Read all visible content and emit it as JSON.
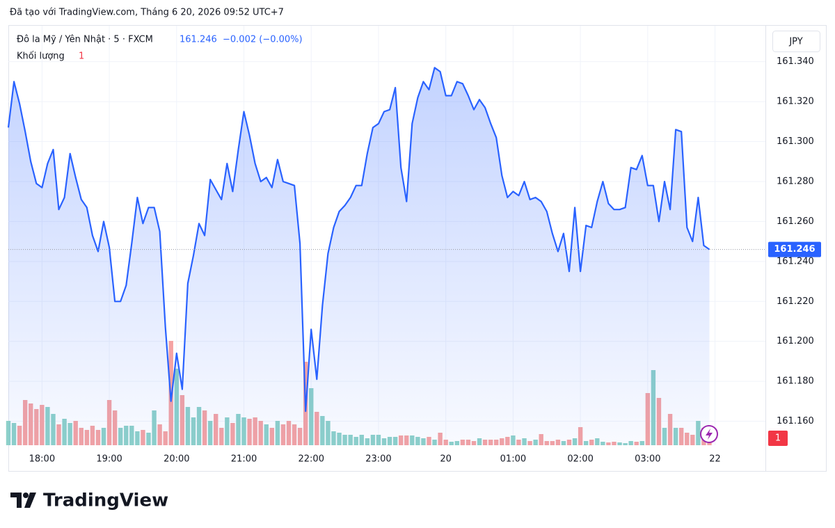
{
  "chart_data": {
    "type": "line",
    "credit": "Đã tạo với TradingView.com, Tháng 6 20, 2026 09:52 UTC+7",
    "brand": "TradingView",
    "currency": "JPY",
    "price_label": "161.246",
    "change_label": "−0.002 (−0.00%)",
    "categories": [
      null,
      null,
      null,
      null,
      null,
      null,
      "18:00",
      null,
      null,
      null,
      null,
      null,
      null,
      null,
      null,
      null,
      null,
      null,
      "19:00",
      null,
      null,
      null,
      null,
      null,
      null,
      null,
      null,
      null,
      null,
      null,
      "20:00",
      null,
      null,
      null,
      null,
      null,
      null,
      null,
      null,
      null,
      null,
      null,
      "21:00",
      null,
      null,
      null,
      null,
      null,
      null,
      null,
      null,
      null,
      null,
      null,
      "22:00",
      null,
      null,
      null,
      null,
      null,
      null,
      null,
      null,
      null,
      null,
      null,
      "23:00",
      null,
      null,
      null,
      null,
      null,
      null,
      null,
      null,
      null,
      null,
      null,
      "20",
      null,
      null,
      null,
      null,
      null,
      null,
      null,
      null,
      null,
      null,
      null,
      "01:00",
      null,
      null,
      null,
      null,
      null,
      null,
      null,
      null,
      null,
      null,
      null,
      "02:00",
      null,
      null,
      null,
      null,
      null,
      null,
      null,
      null,
      null,
      null,
      null,
      "03:00",
      null,
      null,
      null,
      null,
      null,
      null,
      null,
      null,
      null,
      null,
      null,
      "22"
    ],
    "series": [
      {
        "name": "Đô la Mỹ / Yên Nhật · 5 · FXCM",
        "color": "#2962ff",
        "values": [
          161.307,
          161.33,
          161.319,
          161.305,
          161.29,
          161.279,
          161.277,
          161.289,
          161.296,
          161.266,
          161.272,
          161.294,
          161.282,
          161.271,
          161.267,
          161.253,
          161.245,
          161.26,
          161.247,
          161.22,
          161.22,
          161.228,
          161.249,
          161.272,
          161.259,
          161.267,
          161.267,
          161.255,
          161.207,
          161.17,
          161.194,
          161.176,
          161.229,
          161.243,
          161.259,
          161.253,
          161.281,
          161.276,
          161.271,
          161.289,
          161.275,
          161.296,
          161.315,
          161.303,
          161.289,
          161.28,
          161.282,
          161.277,
          161.291,
          161.28,
          161.279,
          161.278,
          161.249,
          161.165,
          161.206,
          161.181,
          161.218,
          161.244,
          161.257,
          161.265,
          161.268,
          161.272,
          161.278,
          161.278,
          161.294,
          161.307,
          161.309,
          161.315,
          161.316,
          161.327,
          161.287,
          161.27,
          161.309,
          161.322,
          161.33,
          161.326,
          161.337,
          161.335,
          161.323,
          161.323,
          161.33,
          161.329,
          161.323,
          161.316,
          161.321,
          161.317,
          161.309,
          161.302,
          161.283,
          161.272,
          161.275,
          161.273,
          161.28,
          161.271,
          161.272,
          161.27,
          161.265,
          161.254,
          161.245,
          161.254,
          161.235,
          161.267,
          161.235,
          161.258,
          161.257,
          161.27,
          161.28,
          161.269,
          161.266,
          161.266,
          161.267,
          161.287,
          161.286,
          161.293,
          161.278,
          161.278,
          161.26,
          161.28,
          161.266,
          161.306,
          161.305,
          161.257,
          161.25,
          161.272,
          161.248,
          161.246,
          null
        ]
      }
    ],
    "volume": {
      "name": "Khối lượng",
      "current": 1,
      "up_color": "#8ed1c9",
      "down_color": "#f5a3a3",
      "values": [
        35,
        32,
        28,
        65,
        60,
        52,
        58,
        55,
        45,
        30,
        38,
        32,
        35,
        25,
        22,
        28,
        22,
        25,
        65,
        50,
        25,
        28,
        28,
        20,
        22,
        18,
        50,
        30,
        20,
        150,
        110,
        72,
        55,
        40,
        55,
        50,
        35,
        45,
        25,
        40,
        32,
        45,
        40,
        38,
        40,
        35,
        30,
        25,
        35,
        30,
        35,
        30,
        25,
        120,
        82,
        48,
        42,
        35,
        20,
        18,
        15,
        15,
        12,
        15,
        10,
        15,
        15,
        10,
        12,
        12,
        14,
        14,
        14,
        12,
        10,
        12,
        8,
        18,
        8,
        5,
        6,
        8,
        8,
        6,
        10,
        8,
        8,
        8,
        10,
        12,
        14,
        8,
        10,
        6,
        8,
        16,
        6,
        6,
        8,
        6,
        8,
        10,
        26,
        6,
        8,
        10,
        5,
        4,
        5,
        4,
        3,
        6,
        5,
        6,
        75,
        108,
        68,
        25,
        45,
        25,
        25,
        18,
        15,
        35,
        25,
        5,
        null
      ]
    },
    "ylim": [
      161.148,
      161.358
    ],
    "yticks": [
      {
        "value": 161.16,
        "label": "161.160"
      },
      {
        "value": 161.18,
        "label": "161.180"
      },
      {
        "value": 161.2,
        "label": "161.200"
      },
      {
        "value": 161.22,
        "label": "161.220"
      },
      {
        "value": 161.24,
        "label": "161.240"
      },
      {
        "value": 161.26,
        "label": "161.260"
      },
      {
        "value": 161.28,
        "label": "161.280"
      },
      {
        "value": 161.3,
        "label": "161.300"
      },
      {
        "value": 161.32,
        "label": "161.320"
      },
      {
        "value": 161.34,
        "label": "161.340"
      }
    ],
    "grid": true
  }
}
